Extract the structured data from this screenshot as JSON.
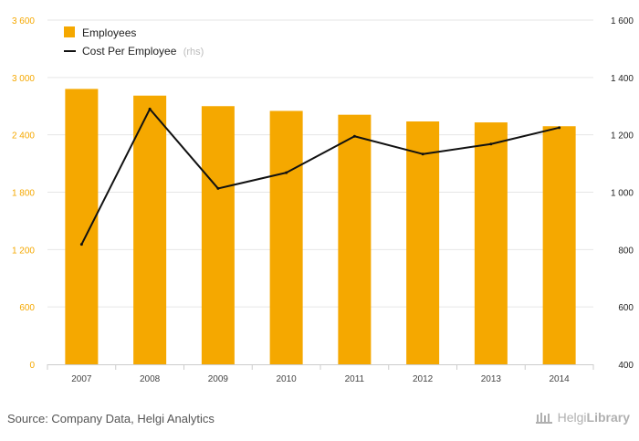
{
  "chart_data": {
    "type": "bar",
    "categories": [
      "2007",
      "2008",
      "2009",
      "2010",
      "2011",
      "2012",
      "2013",
      "2014"
    ],
    "series": [
      {
        "name": "Employees",
        "type": "bar",
        "axis": "left",
        "color": "#f5a800",
        "values": [
          2880,
          2810,
          2700,
          2650,
          2610,
          2540,
          2530,
          2490
        ]
      },
      {
        "name": "Cost Per Employee",
        "name_suffix": "(rhs)",
        "type": "line",
        "axis": "right",
        "color": "#111111",
        "values": [
          818,
          1290,
          1013,
          1068,
          1195,
          1133,
          1168,
          1225
        ]
      }
    ],
    "y_left": {
      "min": 0,
      "max": 3600,
      "ticks": [
        0,
        600,
        1200,
        1800,
        2400,
        3000,
        3600
      ],
      "tick_labels": [
        "0",
        "600",
        "1 200",
        "1 800",
        "2 400",
        "3 000",
        "3 600"
      ]
    },
    "y_right": {
      "min": 400,
      "max": 1600,
      "ticks": [
        400,
        600,
        800,
        1000,
        1200,
        1400,
        1600
      ],
      "tick_labels": [
        "400",
        "600",
        "800",
        "1 000",
        "1 200",
        "1 400",
        "1 600"
      ]
    },
    "grid": true,
    "legend_position": "top-left"
  },
  "footer": {
    "source": "Source: Company Data, Helgi Analytics",
    "brand_part1": "Helgi",
    "brand_part2": "Library"
  }
}
